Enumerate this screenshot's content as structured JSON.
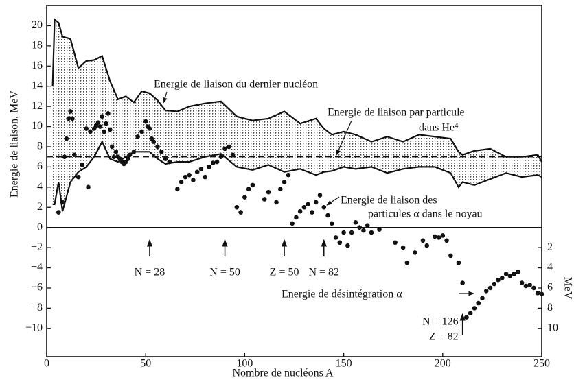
{
  "chart_data": {
    "type": "scatter",
    "xlabel": "Nombre de nucléons A",
    "ylabel": "Energie de liaison, MeV",
    "y2label": "MeV",
    "xlim": [
      0,
      250
    ],
    "xticks": [
      0,
      50,
      100,
      150,
      200,
      250
    ],
    "ylim": [
      -12.8,
      22
    ],
    "yticks": [
      20,
      18,
      16,
      14,
      12,
      10,
      8,
      6,
      4,
      2,
      0,
      {
        "value": -2,
        "label": "−2"
      },
      {
        "value": -4,
        "label": "−4"
      },
      {
        "value": -6,
        "label": "−6"
      },
      {
        "value": -8,
        "label": "−8"
      },
      {
        "value": -10,
        "label": "−10"
      }
    ],
    "y2lim": [
      12.8,
      -22
    ],
    "y2ticks": [
      2,
      4,
      6,
      8,
      10
    ],
    "color": "#111111",
    "band": {
      "x": [
        3,
        4,
        6,
        8,
        12,
        16,
        20,
        24,
        28,
        32,
        36,
        40,
        44,
        48,
        52,
        56,
        60,
        66,
        72,
        80,
        88,
        96,
        104,
        112,
        120,
        128,
        136,
        140,
        144,
        150,
        156,
        164,
        172,
        180,
        188,
        196,
        204,
        208,
        210,
        216,
        224,
        232,
        240,
        248,
        250
      ],
      "upper": [
        14,
        20.6,
        20.3,
        18.9,
        18.7,
        15.8,
        16.5,
        16.6,
        17,
        14.5,
        12.7,
        13,
        12.4,
        13.5,
        13.3,
        12.6,
        11.6,
        11.5,
        12,
        12.3,
        12.5,
        11,
        10.6,
        10.8,
        11.5,
        10.3,
        10.8,
        9.8,
        9.2,
        9.5,
        9.2,
        8.5,
        9,
        8.5,
        9.2,
        9,
        8.8,
        7.5,
        7.2,
        7.6,
        7.8,
        7,
        7,
        7.2,
        6.5
      ],
      "lower": [
        2.3,
        2.3,
        4.5,
        1.6,
        4.5,
        5.5,
        6,
        7,
        8.5,
        6.8,
        6.5,
        7,
        7.5,
        7.5,
        7.5,
        6.8,
        6.3,
        6.5,
        6.5,
        7,
        7.3,
        6,
        5.7,
        6.2,
        5.5,
        5.8,
        5.2,
        5.5,
        5.6,
        6,
        5.8,
        6,
        5.4,
        5.8,
        6,
        6,
        5.4,
        4,
        4.5,
        4.2,
        4.8,
        5.4,
        5,
        5.2,
        5
      ]
    },
    "reference_line": 7,
    "points": {
      "x": [
        6,
        8,
        9,
        10,
        11,
        12,
        13,
        14,
        16,
        18,
        20,
        21,
        22,
        24,
        25,
        26,
        27,
        28,
        29,
        30,
        31,
        32,
        33,
        34,
        35,
        36,
        37,
        38,
        39,
        40,
        41,
        42,
        44,
        46,
        48,
        50,
        51,
        52,
        53,
        54,
        56,
        58,
        60,
        62,
        66,
        68,
        70,
        72,
        74,
        76,
        78,
        80,
        82,
        84,
        86,
        88,
        90,
        92,
        94,
        96,
        98,
        100,
        102,
        104,
        110,
        112,
        116,
        118,
        120,
        122,
        124,
        126,
        128,
        130,
        132,
        134,
        136,
        138,
        140,
        142,
        144,
        146,
        148,
        150,
        152,
        154,
        156,
        158,
        160,
        162,
        164,
        168,
        176,
        180,
        182,
        186,
        190,
        192,
        196,
        198,
        200,
        202,
        204,
        208
      ],
      "y": [
        1.5,
        2.5,
        7,
        8.8,
        10.8,
        11.5,
        10.8,
        7.2,
        5,
        6.2,
        9.8,
        4,
        9.5,
        9.8,
        10.1,
        10.4,
        10,
        11,
        9.5,
        10.3,
        11.3,
        9.7,
        8,
        7,
        7.5,
        7,
        6.8,
        6.5,
        6.3,
        6.5,
        6.8,
        7.2,
        7.5,
        9,
        9.5,
        10.5,
        10,
        9.8,
        8.8,
        8.5,
        8,
        7.5,
        6.8,
        6.5,
        3.8,
        4.5,
        5,
        5.2,
        4.7,
        5.5,
        5.8,
        5,
        6,
        6.4,
        6.5,
        7,
        7.8,
        8,
        7.2,
        2,
        1.5,
        3,
        3.8,
        4.2,
        2.8,
        3.5,
        2.5,
        3.8,
        4.5,
        5.2,
        0.4,
        1,
        1.6,
        2,
        2.3,
        1.5,
        2.5,
        3.2,
        2,
        1.2,
        0.4,
        -1,
        -1.5,
        -0.5,
        -1.8,
        -0.5,
        0.5,
        0,
        -0.3,
        0.2,
        -0.5,
        -0.2,
        -1.5,
        -2,
        -3.5,
        -2.5,
        -1.3,
        -1.8,
        -0.9,
        -1,
        -0.8,
        -1.3,
        -2.8,
        -3.5
      ]
    },
    "decay": {
      "axis": "y2",
      "x": [
        210,
        212,
        214,
        216,
        218,
        220,
        222,
        224,
        226,
        228,
        230,
        232,
        234,
        236,
        238,
        240,
        242,
        244,
        246,
        248,
        250
      ],
      "y": [
        5.5,
        8.9,
        8.5,
        8,
        7.5,
        7,
        6.3,
        6,
        5.6,
        5.2,
        5,
        4.6,
        4.8,
        4.6,
        4.4,
        5.5,
        5.8,
        5.7,
        6,
        6.5,
        6.6
      ]
    },
    "annotations": [
      "Energie de liaison du dernier nucléon",
      "Energie de liaison par particule",
      "dans He⁴",
      "Energie de liaison des",
      "particules α dans le noyau",
      "Energie de désintégration α"
    ],
    "markers": [
      {
        "x": 52,
        "labels": [
          "N = 28"
        ]
      },
      {
        "x": 90,
        "labels": [
          "N = 50"
        ]
      },
      {
        "x": 120,
        "labels": [
          "Z = 50"
        ]
      },
      {
        "x": 140,
        "labels": [
          "N = 82"
        ]
      },
      {
        "x": 210,
        "labels": [
          "N = 126",
          "Z = 82"
        ]
      }
    ]
  }
}
